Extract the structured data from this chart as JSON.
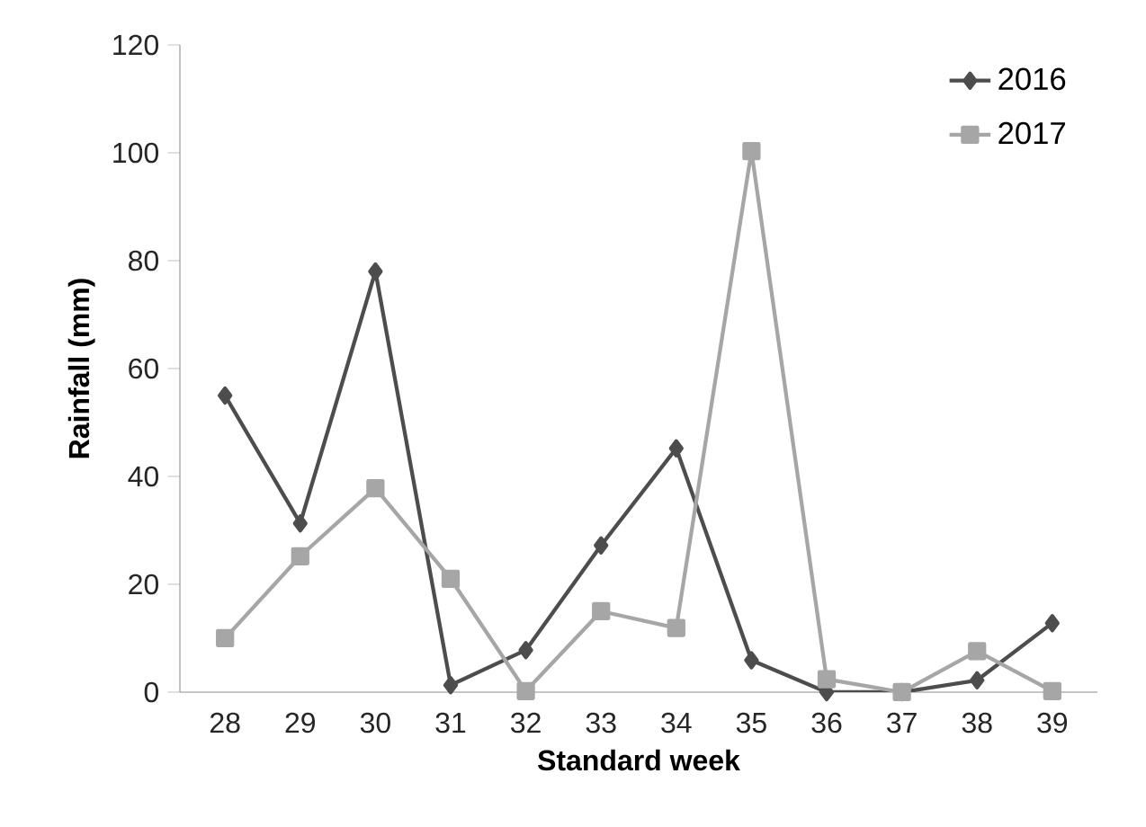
{
  "chart_data": {
    "type": "line",
    "xlabel": "Standard week",
    "ylabel": "Rainfall (mm)",
    "categories": [
      "28",
      "29",
      "30",
      "31",
      "32",
      "33",
      "34",
      "35",
      "36",
      "37",
      "38",
      "39"
    ],
    "series": [
      {
        "name": "2016",
        "color": "#4d4d4d",
        "marker": "diamond",
        "values": [
          55,
          31.3,
          78,
          1.3,
          7.8,
          27.2,
          45.2,
          5.9,
          0,
          0,
          2.2,
          12.8
        ]
      },
      {
        "name": "2017",
        "color": "#a6a6a6",
        "marker": "square",
        "values": [
          10,
          25.2,
          37.8,
          21,
          0.2,
          15,
          11.9,
          100.3,
          2.4,
          0,
          7.6,
          0.2
        ]
      }
    ],
    "ylim": [
      0,
      120
    ],
    "yticks": [
      0,
      20,
      40,
      60,
      80,
      100,
      120
    ],
    "grid": false,
    "legend": "top right"
  }
}
